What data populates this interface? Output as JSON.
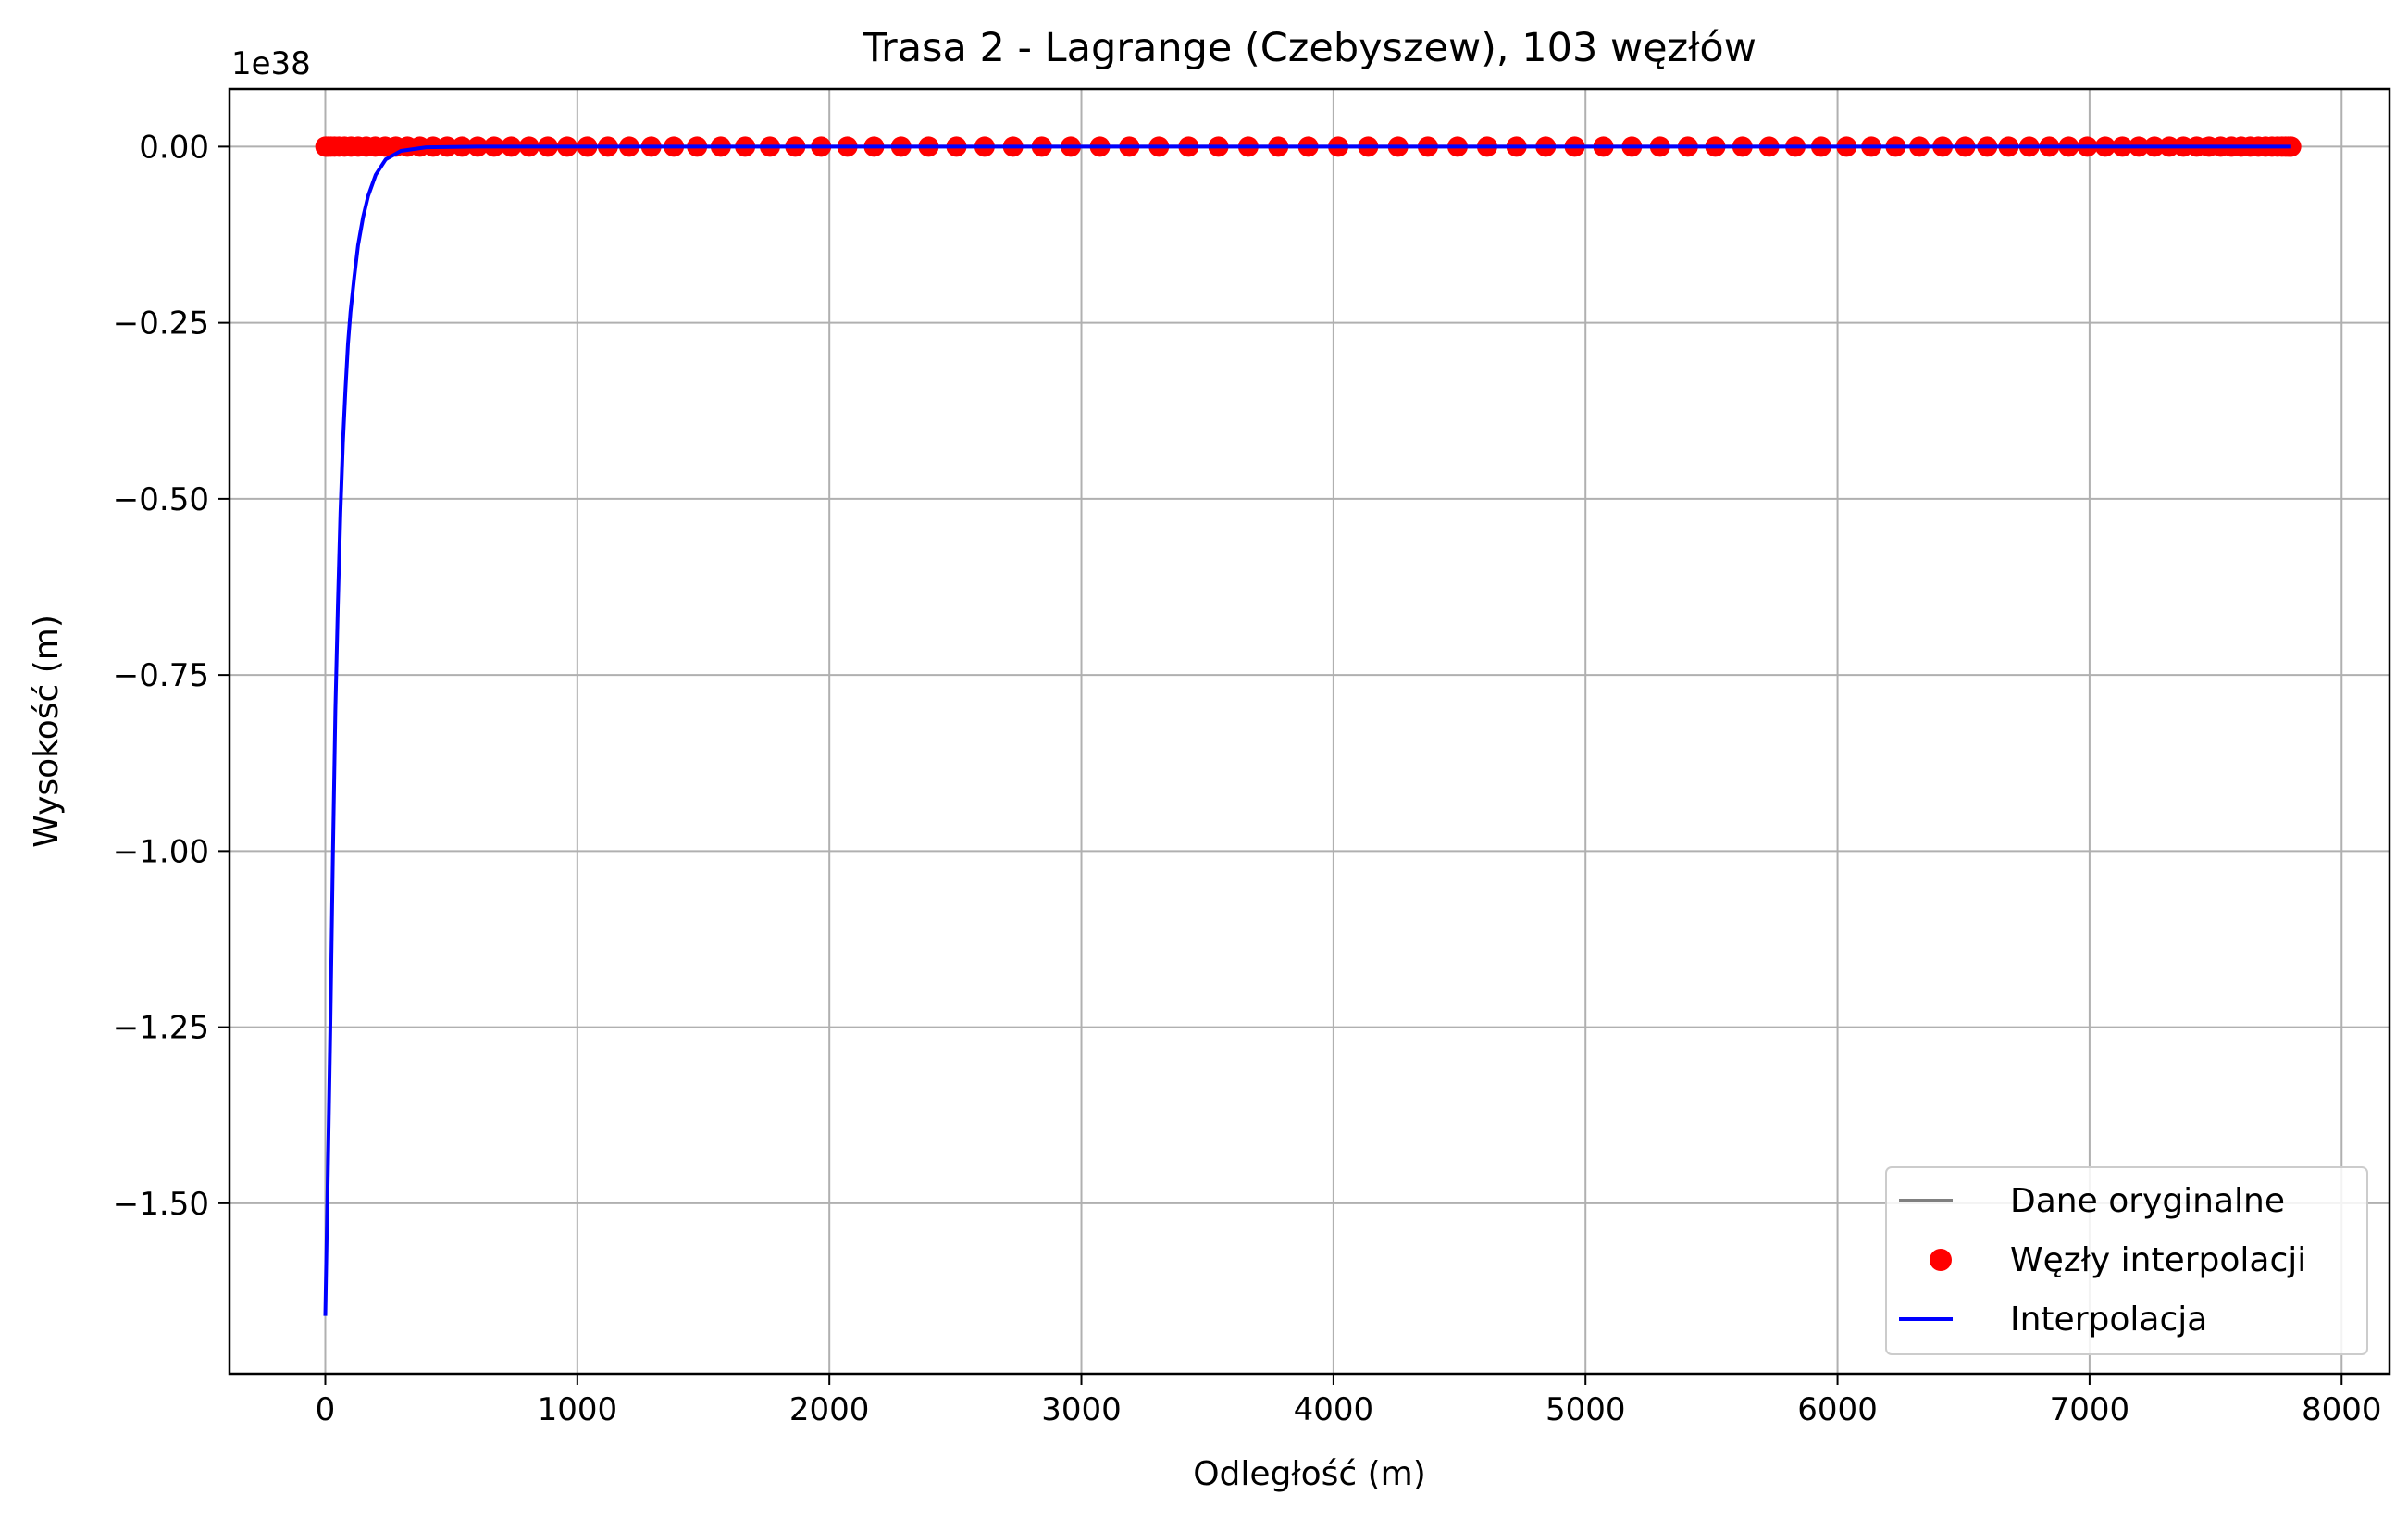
{
  "chart_data": {
    "type": "line",
    "title": "Trasa 2 - Lagrange (Czebyszew), 103 węzłów",
    "xlabel": "Odległość (m)",
    "ylabel": "Wysokość (m)",
    "y_offset_text": "1e38",
    "y_scale_exponent": 38,
    "xlim": [
      -380,
      8190
    ],
    "ylim": [
      -1.742,
      0.082
    ],
    "x_ticks": [
      0,
      1000,
      2000,
      3000,
      4000,
      5000,
      6000,
      7000,
      8000
    ],
    "x_tick_labels": [
      "0",
      "1000",
      "2000",
      "3000",
      "4000",
      "5000",
      "6000",
      "7000",
      "8000"
    ],
    "y_ticks": [
      0.0,
      -0.25,
      -0.5,
      -0.75,
      -1.0,
      -1.25,
      -1.5
    ],
    "y_tick_labels": [
      "0.00",
      "−0.25",
      "−0.50",
      "−0.75",
      "−1.00",
      "−1.25",
      "−1.50"
    ],
    "grid": true,
    "legend_position": "lower right",
    "legend": [
      "Dane oryginalne",
      "Węzły interpolacji",
      "Interpolacja"
    ],
    "colors": {
      "original": "#808080",
      "nodes": "#ff0000",
      "interpolation": "#0000ff",
      "grid": "#b0b0b0"
    },
    "series": [
      {
        "name": "Dane oryginalne",
        "style": "line",
        "x": [
          0,
          7800
        ],
        "y": [
          0,
          0
        ]
      },
      {
        "name": "Węzły interpolacji",
        "style": "markers",
        "node_count": 103,
        "x_range": [
          0,
          7800
        ],
        "x": [],
        "y_value": 0
      },
      {
        "name": "Interpolacja",
        "style": "line",
        "x": [
          0,
          10,
          20,
          30,
          40,
          50,
          60,
          70,
          80,
          90,
          100,
          115,
          130,
          150,
          170,
          200,
          240,
          300,
          400,
          600,
          1000,
          2000,
          4000,
          6000,
          7800
        ],
        "y": [
          -1.66,
          -1.46,
          -1.25,
          -1.01,
          -0.8,
          -0.65,
          -0.52,
          -0.42,
          -0.345,
          -0.28,
          -0.235,
          -0.185,
          -0.14,
          -0.1,
          -0.07,
          -0.04,
          -0.018,
          -0.006,
          -0.001,
          0,
          0,
          0,
          0,
          0,
          0
        ]
      }
    ]
  }
}
